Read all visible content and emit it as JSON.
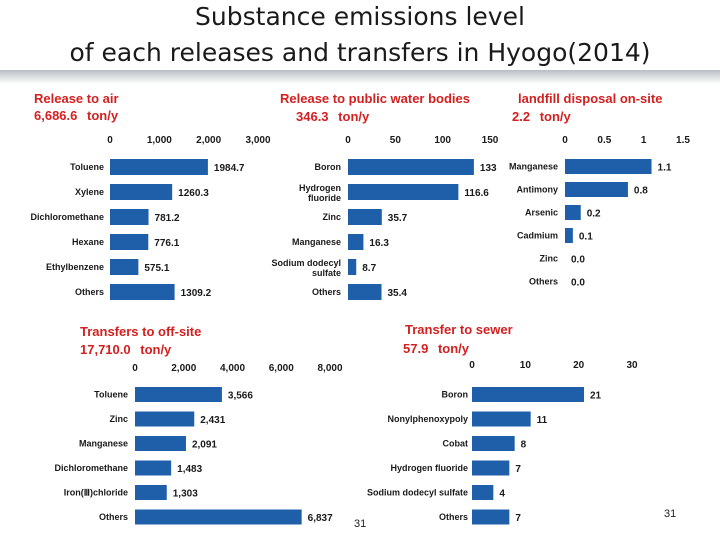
{
  "slide": {
    "title_line1": "Substance emissions level",
    "title_line2": "of each releases and transfers in Hyogo(2014)",
    "page_number_center": "31",
    "page_number_right": "31"
  },
  "colors": {
    "bar": "#1f5faa",
    "header": "#d42020",
    "text": "#1a1a1a"
  },
  "chart_data": [
    {
      "id": "air",
      "type": "bar",
      "orientation": "horizontal",
      "title": "Release to air",
      "total": "6,686.6",
      "unit": "ton/y",
      "categories": [
        "Toluene",
        "Xylene",
        "Dichloromethane",
        "Hexane",
        "Ethylbenzene",
        "Others"
      ],
      "values": [
        1984.7,
        1260.3,
        781.2,
        776.1,
        575.1,
        1309.2
      ],
      "labels": [
        "1984.7",
        "1260.3",
        "781.2",
        "776.1",
        "575.1",
        "1309.2"
      ],
      "ticks": [
        "0",
        "1,000",
        "2,000",
        "3,000"
      ],
      "tick_values": [
        0,
        1000,
        2000,
        3000
      ],
      "xlim": [
        0,
        3000
      ]
    },
    {
      "id": "water",
      "type": "bar",
      "orientation": "horizontal",
      "title": "Release to public water bodies",
      "total": "346.3",
      "unit": "ton/y",
      "categories": [
        "Boron",
        "Hydrogen fluoride",
        "Zinc",
        "Manganese",
        "Sodium dodecyl sulfate",
        "Others"
      ],
      "values": [
        133,
        116.6,
        35.7,
        16.3,
        8.7,
        35.4
      ],
      "labels": [
        "133",
        "116.6",
        "35.7",
        "16.3",
        "8.7",
        "35.4"
      ],
      "ticks": [
        "0",
        "50",
        "100",
        "150"
      ],
      "tick_values": [
        0,
        50,
        100,
        150
      ],
      "xlim": [
        0,
        150
      ]
    },
    {
      "id": "landfill",
      "type": "bar",
      "orientation": "horizontal",
      "title": "landfill disposal on-site",
      "total": "2.2",
      "unit": "ton/y",
      "categories": [
        "Manganese",
        "Antimony",
        "Arsenic",
        "Cadmium",
        "Zinc",
        "Others"
      ],
      "values": [
        1.1,
        0.8,
        0.2,
        0.1,
        0.0,
        0.0
      ],
      "labels": [
        "1.1",
        "0.8",
        "0.2",
        "0.1",
        "0.0",
        "0.0"
      ],
      "ticks": [
        "0",
        "0.5",
        "1",
        "1.5"
      ],
      "tick_values": [
        0,
        0.5,
        1,
        1.5
      ],
      "xlim": [
        0,
        1.5
      ]
    },
    {
      "id": "offsite",
      "type": "bar",
      "orientation": "horizontal",
      "title": "Transfers to off-site",
      "total": "17,710.0",
      "unit": "ton/y",
      "categories": [
        "Toluene",
        "Zinc",
        "Manganese",
        "Dichloromethane",
        "Iron(Ⅲ)chloride",
        "Others"
      ],
      "values": [
        3566,
        2431,
        2091,
        1483,
        1303,
        6837
      ],
      "labels": [
        "3,566",
        "2,431",
        "2,091",
        "1,483",
        "1,303",
        "6,837"
      ],
      "ticks": [
        "0",
        "2,000",
        "4,000",
        "6,000",
        "8,000"
      ],
      "tick_values": [
        0,
        2000,
        4000,
        6000,
        8000
      ],
      "xlim": [
        0,
        8000
      ]
    },
    {
      "id": "sewer",
      "type": "bar",
      "orientation": "horizontal",
      "title": "Transfer to sewer",
      "total": "57.9",
      "unit": "ton/y",
      "categories": [
        "Boron",
        "Nonylphenoxypoly",
        "Cobat",
        "Hydrogen fluoride",
        "Sodium dodecyl sulfate",
        "Others"
      ],
      "values": [
        21,
        11,
        8,
        7,
        4,
        7
      ],
      "labels": [
        "21",
        "11",
        "8",
        "7",
        "4",
        "7"
      ],
      "ticks": [
        "0",
        "10",
        "20",
        "30"
      ],
      "tick_values": [
        0,
        10,
        20,
        30
      ],
      "xlim": [
        0,
        30
      ]
    }
  ]
}
